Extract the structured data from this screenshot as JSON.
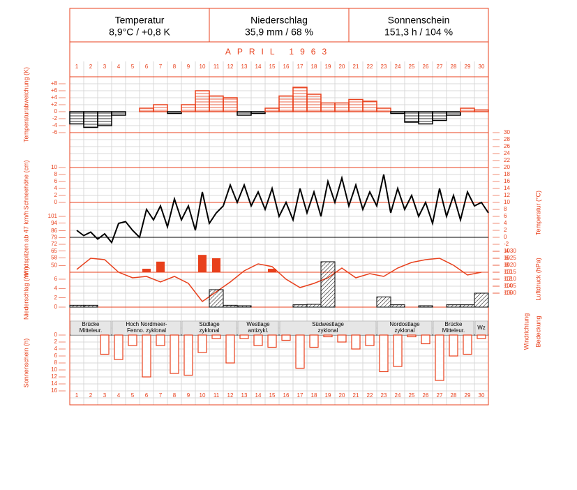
{
  "header": [
    {
      "title": "Temperatur",
      "value": "8,9°C / +0,8 K"
    },
    {
      "title": "Niederschlag",
      "value": "35,9 mm / 68 %"
    },
    {
      "title": "Sonnenschein",
      "value": "151,3 h / 104 %"
    }
  ],
  "month": "APRIL  1963",
  "labels": {
    "wind_direction": "Windrichtung",
    "cloud_cover": "Bedeckung"
  },
  "weather_types": [
    {
      "lines": [
        "Brücke",
        "Mitteleur."
      ],
      "days": [
        1,
        3
      ]
    },
    {
      "lines": [
        "Hoch Nordmeer-",
        "Fenno. zyklonal"
      ],
      "days": [
        4,
        8
      ]
    },
    {
      "lines": [
        "Südlage",
        "zyklonal"
      ],
      "days": [
        9,
        12
      ]
    },
    {
      "lines": [
        "Westlage",
        "antizykl."
      ],
      "days": [
        13,
        15
      ]
    },
    {
      "lines": [
        "Südwestlage",
        "zyklonal"
      ],
      "days": [
        16,
        22
      ]
    },
    {
      "lines": [
        "Nordostlage",
        "zyklonal"
      ],
      "days": [
        23,
        26
      ]
    },
    {
      "lines": [
        "Brücke",
        "Mitteleur."
      ],
      "days": [
        27,
        29
      ]
    },
    {
      "lines": [
        "Wz"
      ],
      "days": [
        30,
        30
      ]
    }
  ],
  "chart_data": [
    {
      "type": "anomaly",
      "y_label": "Temperaturabweichung (K)",
      "categories": [
        1,
        2,
        3,
        4,
        5,
        6,
        7,
        8,
        9,
        10,
        11,
        12,
        13,
        14,
        15,
        16,
        17,
        18,
        19,
        20,
        21,
        22,
        23,
        24,
        25,
        26,
        27,
        28,
        29,
        30
      ],
      "values": [
        -3.5,
        -4.5,
        -4,
        -1,
        0,
        1,
        2,
        -0.5,
        2,
        6,
        4.5,
        4,
        -1,
        -0.5,
        1,
        4.5,
        7,
        5,
        2.5,
        2.5,
        3.5,
        3,
        1,
        -0.5,
        -3,
        -3.5,
        -2.5,
        -1,
        1,
        0.5
      ],
      "color_positive": "#e8401c",
      "color_negative": "#000000",
      "ylim": [
        -6,
        10
      ],
      "yticks": [
        -6,
        -4,
        -2,
        0,
        {
          "value": 2,
          "label": "+2"
        },
        {
          "value": 4,
          "label": "+4"
        },
        {
          "value": 6,
          "label": "+6"
        },
        {
          "value": 8,
          "label": "+8"
        }
      ]
    },
    {
      "type": "line",
      "y_label": "Temperatur (°C)",
      "color": "#000000",
      "x": [
        1,
        1.5,
        2,
        2.5,
        3,
        3.5,
        4,
        4.5,
        5,
        5.5,
        6,
        6.5,
        7,
        7.5,
        8,
        8.5,
        9,
        9.5,
        10,
        10.5,
        11,
        11.5,
        12,
        12.5,
        13,
        13.5,
        14,
        14.5,
        15,
        15.5,
        16,
        16.5,
        17,
        17.5,
        18,
        18.5,
        19,
        19.5,
        20,
        20.5,
        21,
        21.5,
        22,
        22.5,
        23,
        23.5,
        24,
        24.5,
        25,
        25.5,
        26,
        26.5,
        27,
        27.5,
        28,
        28.5,
        29,
        29.5,
        30,
        30.5
      ],
      "values": [
        2,
        0.5,
        1.5,
        -0.5,
        1,
        -1.5,
        4,
        4.5,
        2,
        0,
        8,
        5,
        9,
        3,
        11,
        5,
        9,
        2,
        13,
        4,
        7,
        9,
        15,
        10,
        15,
        9,
        13,
        8,
        14,
        6,
        10,
        5,
        14,
        7,
        13,
        6,
        16,
        10,
        17,
        9,
        15,
        8,
        13,
        9,
        18,
        7,
        14,
        8,
        12,
        6,
        10,
        4,
        14,
        6,
        12,
        5,
        13,
        9,
        10,
        7
      ],
      "ylim": [
        -16,
        30
      ],
      "yticks": [
        30,
        28,
        26,
        24,
        22,
        20,
        18,
        16,
        14,
        12,
        10,
        8,
        6,
        4,
        2,
        0,
        -2,
        -4,
        -6,
        -8,
        -10,
        -12,
        -14,
        -16
      ]
    },
    {
      "type": "axis",
      "y_label": "Schneehöhe (cm)",
      "ylim": [
        0,
        10
      ],
      "yticks": [
        10,
        8,
        6,
        4,
        2,
        0
      ]
    },
    {
      "type": "line",
      "y_label": "Luftdruck (hPa)",
      "color": "#e8401c",
      "x": [
        1,
        2,
        3,
        4,
        5,
        6,
        7,
        8,
        9,
        10,
        11,
        12,
        13,
        14,
        15,
        16,
        17,
        18,
        19,
        20,
        21,
        22,
        23,
        24,
        25,
        26,
        27,
        28,
        29,
        30
      ],
      "values": [
        1017,
        1025,
        1024,
        1015,
        1011,
        1012,
        1008,
        1012,
        1007,
        994,
        1001,
        1008,
        1016,
        1021,
        1019,
        1010,
        1004,
        1007,
        1011,
        1018,
        1011,
        1014,
        1012,
        1018,
        1022,
        1024,
        1025,
        1020,
        1013,
        1015
      ],
      "ylim": [
        985,
        1035
      ],
      "yticks": [
        1030,
        1025,
        1020,
        1015,
        1010,
        1005,
        1000
      ]
    },
    {
      "type": "bar",
      "y_label": "Windspitzen ab 47 km/h",
      "color": "#e8401c",
      "x": [
        6,
        7,
        10,
        11,
        15
      ],
      "values": [
        46.6,
        54,
        61,
        57.5,
        46.6
      ],
      "ylim": [
        43,
        101
      ],
      "yticks": [
        101,
        94,
        86,
        79,
        72,
        65,
        58,
        50
      ]
    },
    {
      "type": "hatched",
      "y_label": "Niederschlag (mm)",
      "color": "#000000",
      "x": [
        1,
        2,
        11,
        12,
        13,
        17,
        18,
        19,
        23,
        24,
        26,
        28,
        29,
        30
      ],
      "values": [
        0.4,
        0.4,
        3.75,
        0.4,
        0.3,
        0.5,
        0.6,
        9.75,
        2.2,
        0.5,
        0.3,
        0.5,
        0.5,
        3
      ],
      "ylim": [
        0,
        6
      ],
      "yticks": [
        6,
        4,
        2,
        0
      ]
    },
    {
      "type": "hanging",
      "y_label": "Sonnenschein (h)",
      "color": "#e8401c",
      "x": [
        1,
        2,
        3,
        4,
        5,
        6,
        7,
        8,
        9,
        10,
        11,
        12,
        13,
        14,
        15,
        16,
        17,
        18,
        19,
        20,
        21,
        22,
        23,
        24,
        25,
        26,
        27,
        28,
        29,
        30
      ],
      "values": [
        0,
        0,
        5.5,
        7,
        3,
        12,
        3,
        11,
        11.5,
        5,
        1,
        8,
        1,
        3,
        3.5,
        1.5,
        9.5,
        3.5,
        0.5,
        2,
        4,
        3,
        10.5,
        9,
        0.5,
        2.5,
        13,
        6,
        5.5,
        1
      ],
      "ylim": [
        0,
        16
      ],
      "yticks": [
        0,
        2,
        4,
        6,
        8,
        10,
        12,
        14,
        16
      ]
    }
  ]
}
